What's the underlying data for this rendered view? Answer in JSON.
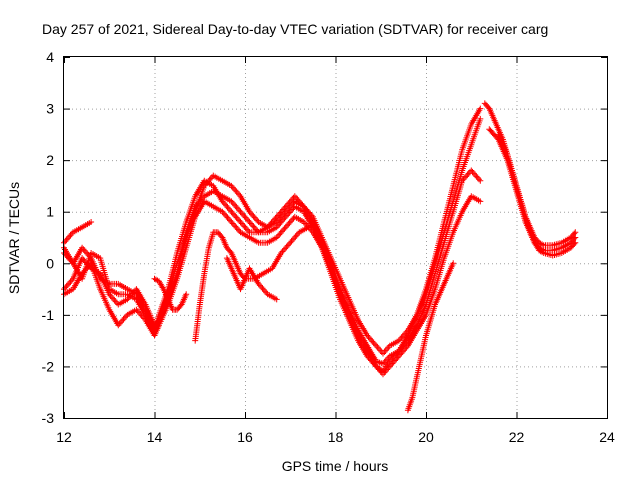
{
  "chart_data": {
    "type": "scatter",
    "title": "Day 257 of 2021, Sidereal Day-to-day VTEC variation (SDTVAR) for receiver carg",
    "xlabel": "GPS time / hours",
    "ylabel": "SDTVAR / TECUs",
    "xlim": [
      12,
      24
    ],
    "ylim": [
      -3,
      4
    ],
    "xticks": [
      "12",
      "14",
      "16",
      "18",
      "20",
      "22",
      "24"
    ],
    "yticks": [
      "-3",
      "-2",
      "-1",
      "0",
      "1",
      "2",
      "3",
      "4"
    ],
    "grid": true,
    "marker": "+",
    "color": "#ff0000",
    "series": [
      {
        "name": "trace-1",
        "x": [
          12.0,
          12.2,
          12.4,
          12.6
        ],
        "y": [
          0.4,
          0.6,
          0.7,
          0.8
        ]
      },
      {
        "name": "trace-2",
        "x": [
          12.0,
          12.2,
          12.4,
          12.6,
          12.8,
          13.0,
          13.2,
          13.4,
          13.6,
          13.8,
          14.0,
          14.1,
          14.3,
          14.5,
          14.7,
          14.9,
          15.1,
          15.3,
          15.5,
          15.7,
          15.9,
          16.1,
          16.3,
          16.5,
          16.7,
          16.9,
          17.1,
          17.3,
          17.5,
          17.7,
          17.9,
          18.1,
          18.3,
          18.5,
          18.7,
          18.9,
          19.05,
          19.2,
          19.4,
          19.6,
          19.8,
          20.0,
          20.2,
          20.4,
          20.6,
          20.8,
          21.0,
          21.2
        ],
        "y": [
          0.3,
          0.0,
          -0.3,
          0.2,
          0.1,
          -0.5,
          -0.6,
          -0.6,
          -0.7,
          -1.0,
          -1.3,
          -1.0,
          -0.5,
          0.2,
          0.8,
          1.3,
          1.6,
          1.5,
          1.2,
          1.0,
          0.8,
          0.6,
          0.6,
          0.7,
          0.9,
          1.1,
          1.3,
          1.1,
          0.8,
          0.4,
          0.0,
          -0.5,
          -0.9,
          -1.3,
          -1.6,
          -1.9,
          -1.95,
          -1.8,
          -1.7,
          -1.5,
          -1.2,
          -0.8,
          -0.2,
          0.4,
          1.0,
          1.6,
          1.8,
          1.6
        ]
      },
      {
        "name": "trace-3",
        "x": [
          12.0,
          12.2,
          12.4,
          12.6,
          12.8,
          13.0,
          13.2,
          13.4,
          13.6,
          13.8,
          14.0,
          14.1,
          14.3,
          14.5,
          14.7,
          14.9,
          15.1,
          15.3,
          15.5,
          15.7,
          15.9,
          16.1,
          16.3,
          16.5,
          16.7,
          16.9,
          17.1,
          17.3,
          17.5,
          17.7,
          17.9,
          18.1,
          18.3,
          18.5,
          18.7,
          18.9,
          19.05,
          19.2,
          19.4,
          19.6,
          19.8,
          20.0,
          20.2,
          20.4,
          20.6,
          20.8,
          21.0,
          21.2
        ],
        "y": [
          -0.6,
          -0.5,
          -0.2,
          0.0,
          -0.5,
          -0.9,
          -1.2,
          -1.0,
          -0.9,
          -1.1,
          -1.4,
          -1.2,
          -0.8,
          -0.3,
          0.3,
          0.9,
          1.2,
          1.1,
          1.0,
          0.8,
          0.6,
          0.5,
          0.4,
          0.4,
          0.5,
          0.7,
          0.9,
          0.8,
          0.6,
          0.3,
          -0.1,
          -0.6,
          -1.0,
          -1.4,
          -1.7,
          -2.0,
          -2.15,
          -2.0,
          -1.8,
          -1.6,
          -1.3,
          -1.0,
          -0.5,
          0.1,
          0.6,
          1.0,
          1.3,
          1.2
        ]
      },
      {
        "name": "trace-4",
        "x": [
          12.0,
          12.2,
          12.4,
          12.6,
          12.8,
          13.0,
          13.2,
          13.4,
          13.6,
          13.8,
          14.0,
          14.1,
          14.3,
          14.5,
          14.7,
          14.9,
          15.1,
          15.3,
          15.5,
          15.7,
          15.9,
          16.1,
          16.3,
          16.5,
          16.7,
          16.9,
          17.1,
          17.3,
          17.5,
          17.7,
          17.9,
          18.1,
          18.3,
          18.5,
          18.7,
          18.9,
          19.05,
          19.2,
          19.4,
          19.6,
          19.8,
          20.0,
          20.2,
          20.4,
          20.6,
          20.8,
          21.0,
          21.2
        ],
        "y": [
          -0.5,
          -0.3,
          0.1,
          -0.1,
          -0.2,
          -0.6,
          -0.8,
          -0.7,
          -0.5,
          -0.8,
          -1.2,
          -1.1,
          -0.6,
          0.0,
          0.5,
          1.0,
          1.5,
          1.7,
          1.6,
          1.5,
          1.3,
          1.0,
          0.8,
          0.7,
          0.8,
          1.0,
          1.2,
          1.1,
          0.9,
          0.5,
          0.1,
          -0.3,
          -0.7,
          -1.1,
          -1.4,
          -1.6,
          -1.75,
          -1.6,
          -1.5,
          -1.3,
          -1.0,
          -0.6,
          0.0,
          0.6,
          1.2,
          1.8,
          2.3,
          2.8
        ]
      },
      {
        "name": "trace-5",
        "x": [
          12.0,
          12.2,
          12.4,
          12.6,
          12.8,
          13.0,
          13.2,
          13.4,
          13.6,
          13.8,
          14.0,
          14.1,
          14.3,
          14.5,
          14.7,
          14.9,
          15.1,
          15.3,
          15.5,
          15.7,
          15.9,
          16.1,
          16.3,
          16.5,
          16.7,
          16.9,
          17.1,
          17.3,
          17.5,
          17.7,
          17.9,
          18.1,
          18.3,
          18.5,
          18.7,
          18.9,
          19.05,
          19.2,
          19.4,
          19.6,
          19.8,
          20.0,
          20.2,
          20.4,
          20.6,
          20.8,
          21.0,
          21.2
        ],
        "y": [
          0.2,
          0.0,
          0.3,
          0.1,
          -0.3,
          -0.4,
          -0.4,
          -0.5,
          -0.6,
          -0.9,
          -1.3,
          -1.1,
          -0.7,
          -0.2,
          0.6,
          1.1,
          1.3,
          1.4,
          1.3,
          1.2,
          1.0,
          0.8,
          0.6,
          0.6,
          0.7,
          0.9,
          1.1,
          1.0,
          0.7,
          0.3,
          -0.2,
          -0.7,
          -1.1,
          -1.5,
          -1.8,
          -2.0,
          -2.1,
          -1.9,
          -1.7,
          -1.4,
          -1.0,
          -0.5,
          0.1,
          0.8,
          1.5,
          2.2,
          2.7,
          3.0
        ]
      },
      {
        "name": "trace-6",
        "x": [
          19.6,
          19.7,
          19.8,
          19.9,
          20.0,
          20.1,
          20.2,
          20.3,
          20.4,
          20.5,
          20.6
        ],
        "y": [
          -2.85,
          -2.6,
          -2.2,
          -1.8,
          -1.4,
          -1.1,
          -0.8,
          -0.6,
          -0.4,
          -0.2,
          0.0
        ]
      },
      {
        "name": "trace-7",
        "x": [
          14.9,
          15.0,
          15.1,
          15.2,
          15.3,
          15.4,
          15.5,
          15.6,
          15.7,
          15.8,
          15.9,
          16.0,
          16.2,
          16.4,
          16.6,
          16.8,
          17.0,
          17.2,
          17.4
        ],
        "y": [
          -1.5,
          -0.8,
          -0.2,
          0.3,
          0.6,
          0.6,
          0.5,
          0.3,
          0.2,
          0.0,
          -0.2,
          -0.3,
          -0.3,
          -0.2,
          -0.1,
          0.2,
          0.4,
          0.6,
          0.7
        ]
      },
      {
        "name": "trace-8",
        "x": [
          15.6,
          15.7,
          15.8,
          15.9,
          16.0,
          16.1,
          16.3,
          16.5,
          16.7
        ],
        "y": [
          0.1,
          -0.1,
          -0.3,
          -0.5,
          -0.3,
          -0.1,
          -0.4,
          -0.6,
          -0.7
        ]
      },
      {
        "name": "trace-9",
        "x": [
          14.0,
          14.1,
          14.2,
          14.3,
          14.4,
          14.5,
          14.6,
          14.7
        ],
        "y": [
          -0.3,
          -0.35,
          -0.5,
          -0.7,
          -0.9,
          -0.9,
          -0.8,
          -0.6
        ]
      },
      {
        "name": "trace-10",
        "x": [
          21.3,
          21.4,
          21.5,
          21.6,
          21.7,
          21.8,
          21.9,
          22.0,
          22.1,
          22.2,
          22.3,
          22.4,
          22.5,
          22.6,
          22.8,
          23.0,
          23.2,
          23.3
        ],
        "y": [
          3.1,
          3.0,
          2.8,
          2.6,
          2.4,
          2.1,
          1.8,
          1.5,
          1.2,
          0.9,
          0.7,
          0.5,
          0.4,
          0.35,
          0.35,
          0.4,
          0.5,
          0.6
        ]
      },
      {
        "name": "trace-11",
        "x": [
          21.4,
          21.5,
          21.6,
          21.7,
          21.8,
          21.9,
          22.0,
          22.1,
          22.2,
          22.3,
          22.4,
          22.5,
          22.6,
          22.8,
          23.0,
          23.2,
          23.3
        ],
        "y": [
          2.6,
          2.5,
          2.4,
          2.2,
          2.0,
          1.7,
          1.4,
          1.1,
          0.8,
          0.6,
          0.4,
          0.3,
          0.25,
          0.25,
          0.3,
          0.4,
          0.5
        ]
      },
      {
        "name": "trace-12",
        "x": [
          21.6,
          21.7,
          21.8,
          21.9,
          22.0,
          22.1,
          22.2,
          22.3,
          22.4,
          22.5,
          22.6,
          22.8,
          23.0,
          23.2,
          23.3
        ],
        "y": [
          2.5,
          2.3,
          2.1,
          1.8,
          1.5,
          1.2,
          0.9,
          0.6,
          0.4,
          0.25,
          0.2,
          0.15,
          0.2,
          0.3,
          0.4
        ]
      }
    ]
  }
}
